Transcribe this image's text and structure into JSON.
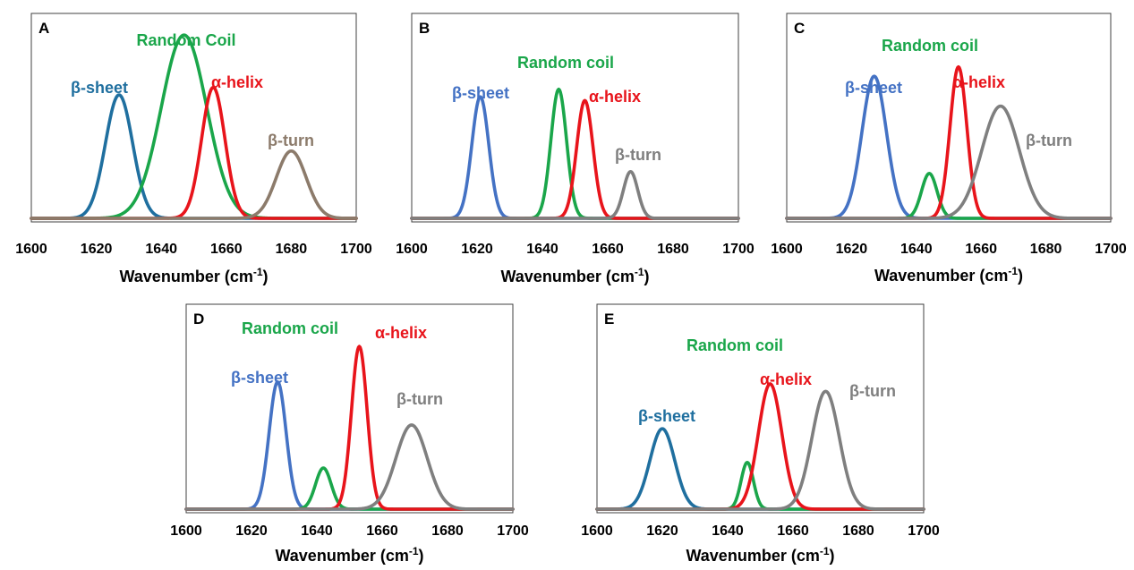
{
  "figure": {
    "xlabel_main": "Wavenumber (cm",
    "xlabel_sup": "-1",
    "xlabel_close": ")",
    "x_ticks": [
      "1600",
      "1620",
      "1640",
      "1660",
      "1680",
      "1700"
    ]
  },
  "colors": {
    "beta_sheet_dark": "#1f6f9f",
    "beta_sheet_light": "#4472c4",
    "random_coil": "#1aa64a",
    "alpha_helix": "#e8141b",
    "beta_turn_tan": "#8c7b6b",
    "beta_turn_gray": "#7f7f7f",
    "frame": "#404040"
  },
  "chart_data": [
    {
      "panel": "A",
      "type": "line",
      "xlim": [
        1600,
        1700
      ],
      "ylim": [
        0,
        1
      ],
      "series": [
        {
          "name": "β-sheet",
          "center": 1627,
          "sigma": 4.2,
          "height": 0.66,
          "color": "#1f6f9f"
        },
        {
          "name": "Random Coil",
          "center": 1647,
          "sigma": 7.0,
          "height": 0.98,
          "color": "#1aa64a"
        },
        {
          "name": "α-helix",
          "center": 1656,
          "sigma": 3.6,
          "height": 0.7,
          "color": "#e8141b"
        },
        {
          "name": "β-turn",
          "center": 1680,
          "sigma": 4.6,
          "height": 0.36,
          "color": "#8c7b6b"
        }
      ],
      "labels": {
        "beta_sheet": "β-sheet",
        "random_coil": "Random Coil",
        "alpha_helix": "α-helix",
        "beta_turn": "β-turn"
      }
    },
    {
      "panel": "B",
      "type": "line",
      "xlim": [
        1600,
        1700
      ],
      "ylim": [
        0,
        1
      ],
      "series": [
        {
          "name": "β-sheet",
          "center": 1621,
          "sigma": 2.6,
          "height": 0.65,
          "color": "#4472c4"
        },
        {
          "name": "Random coil",
          "center": 1645,
          "sigma": 2.4,
          "height": 0.69,
          "color": "#1aa64a"
        },
        {
          "name": "α-helix",
          "center": 1653,
          "sigma": 2.5,
          "height": 0.63,
          "color": "#e8141b"
        },
        {
          "name": "β-turn",
          "center": 1667,
          "sigma": 2.2,
          "height": 0.25,
          "color": "#7f7f7f"
        }
      ],
      "labels": {
        "beta_sheet": "β-sheet",
        "random_coil": "Random coil",
        "alpha_helix": "α-helix",
        "beta_turn": "β-turn"
      }
    },
    {
      "panel": "C",
      "type": "line",
      "xlim": [
        1600,
        1700
      ],
      "ylim": [
        0,
        1
      ],
      "series": [
        {
          "name": "β-sheet",
          "center": 1627,
          "sigma": 3.8,
          "height": 0.76,
          "color": "#4472c4"
        },
        {
          "name": "Random coil",
          "center": 1644,
          "sigma": 2.4,
          "height": 0.24,
          "color": "#1aa64a"
        },
        {
          "name": "α-helix",
          "center": 1653,
          "sigma": 2.6,
          "height": 0.81,
          "color": "#e8141b"
        },
        {
          "name": "β-turn",
          "center": 1666,
          "sigma": 5.8,
          "height": 0.6,
          "color": "#7f7f7f"
        }
      ],
      "labels": {
        "beta_sheet": "β-sheet",
        "random_coil": "Random coil",
        "alpha_helix": "α-helix",
        "beta_turn": "β-turn"
      }
    },
    {
      "panel": "D",
      "type": "line",
      "xlim": [
        1600,
        1700
      ],
      "ylim": [
        0,
        1
      ],
      "series": [
        {
          "name": "β-sheet",
          "center": 1628,
          "sigma": 2.6,
          "height": 0.68,
          "color": "#4472c4"
        },
        {
          "name": "Random coil",
          "center": 1642,
          "sigma": 2.4,
          "height": 0.22,
          "color": "#1aa64a"
        },
        {
          "name": "α-helix",
          "center": 1653,
          "sigma": 2.4,
          "height": 0.87,
          "color": "#e8141b"
        },
        {
          "name": "β-turn",
          "center": 1669,
          "sigma": 4.8,
          "height": 0.45,
          "color": "#7f7f7f"
        }
      ],
      "labels": {
        "beta_sheet": "β-sheet",
        "random_coil": "Random coil",
        "alpha_helix": "α-helix",
        "beta_turn": "β-turn"
      }
    },
    {
      "panel": "E",
      "type": "line",
      "xlim": [
        1600,
        1700
      ],
      "ylim": [
        0,
        1
      ],
      "series": [
        {
          "name": "β-sheet",
          "center": 1620,
          "sigma": 3.8,
          "height": 0.43,
          "color": "#1f6f9f"
        },
        {
          "name": "Random coil",
          "center": 1646,
          "sigma": 1.9,
          "height": 0.25,
          "color": "#1aa64a"
        },
        {
          "name": "α-helix",
          "center": 1653,
          "sigma": 3.6,
          "height": 0.67,
          "color": "#e8141b"
        },
        {
          "name": "β-turn",
          "center": 1670,
          "sigma": 4.2,
          "height": 0.63,
          "color": "#7f7f7f"
        }
      ],
      "labels": {
        "beta_sheet": "β-sheet",
        "random_coil": "Random coil",
        "alpha_helix": "α-helix",
        "beta_turn": "β-turn"
      }
    }
  ]
}
